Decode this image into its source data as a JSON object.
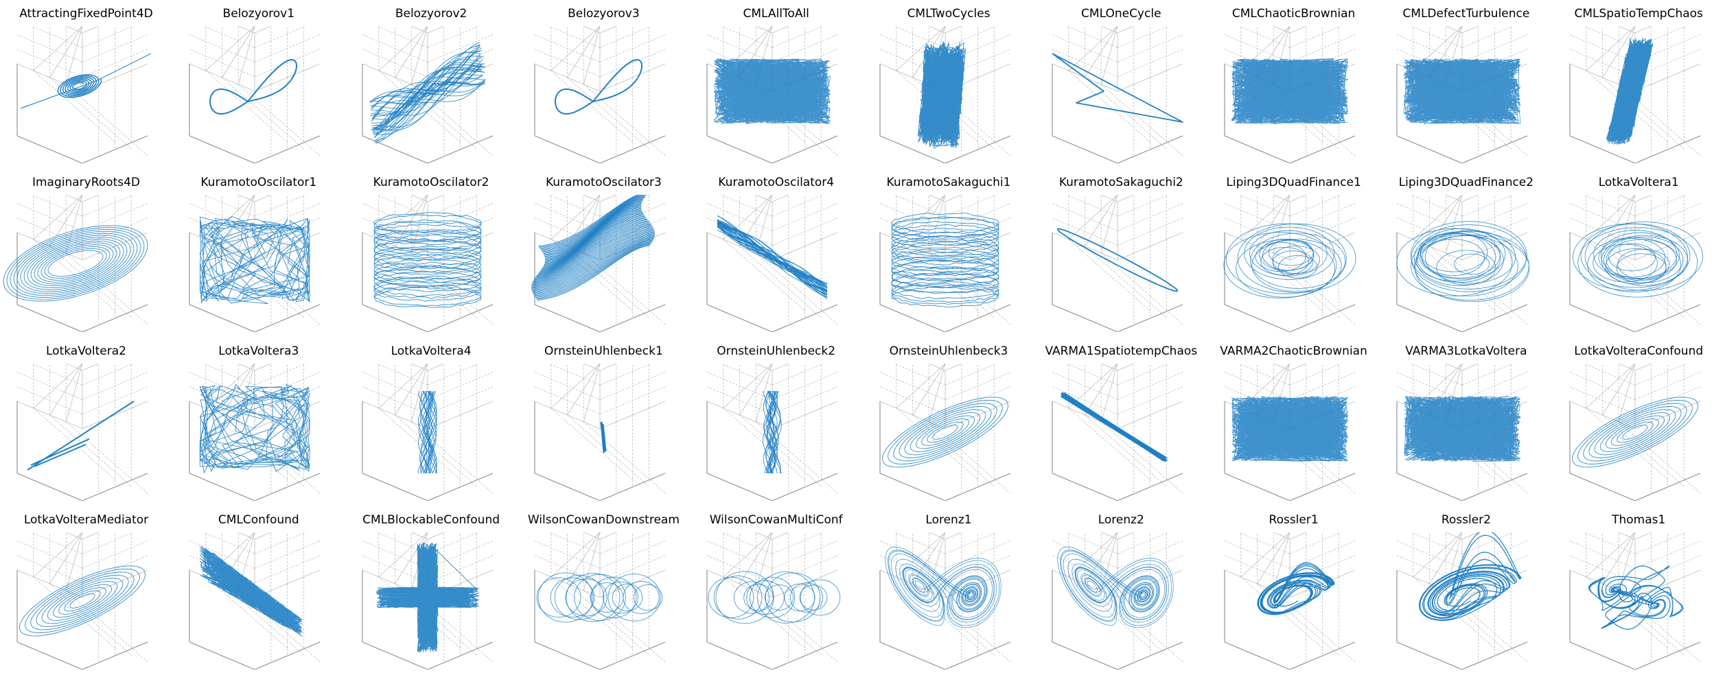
{
  "figure": {
    "accent_color": "#1f7fc4",
    "grid_color": "#bdbdbd",
    "axis_color": "#8a8a8a",
    "chart_type": "3D line plots of system trajectories",
    "layout": "4 rows x 10 columns"
  },
  "chart_data": [
    {
      "type": "line",
      "title": "AttractingFixedPoint4D",
      "shape": "fixedpoint",
      "density": "dense",
      "grid": true
    },
    {
      "type": "line",
      "title": "Belozyorov1",
      "shape": "loop",
      "density": "thin",
      "grid": true
    },
    {
      "type": "line",
      "title": "Belozyorov2",
      "shape": "band",
      "density": "dense",
      "grid": true
    },
    {
      "type": "line",
      "title": "Belozyorov3",
      "shape": "loop",
      "density": "thin",
      "grid": true
    },
    {
      "type": "line",
      "title": "CMLAllToAll",
      "shape": "noise",
      "density": "dense",
      "grid": true
    },
    {
      "type": "line",
      "title": "CMLTwoCycles",
      "shape": "blob",
      "density": "dense",
      "grid": true
    },
    {
      "type": "line",
      "title": "CMLOneCycle",
      "shape": "triangle",
      "density": "thin",
      "grid": true
    },
    {
      "type": "line",
      "title": "CMLChaoticBrownian",
      "shape": "noise",
      "density": "dense",
      "grid": true
    },
    {
      "type": "line",
      "title": "CMLDefectTurbulence",
      "shape": "noise",
      "density": "dense",
      "grid": true
    },
    {
      "type": "line",
      "title": "CMLSpatioTempChaos",
      "shape": "strip",
      "density": "dense",
      "grid": true
    },
    {
      "type": "line",
      "title": "ImaginaryRoots4D",
      "shape": "rings",
      "density": "medium",
      "grid": true
    },
    {
      "type": "line",
      "title": "KuramotoOscilator1",
      "shape": "tangle",
      "density": "medium",
      "grid": true
    },
    {
      "type": "line",
      "title": "KuramotoOscilator2",
      "shape": "cylinder",
      "density": "medium",
      "grid": true
    },
    {
      "type": "line",
      "title": "KuramotoOscilator3",
      "shape": "torus",
      "density": "dense",
      "grid": true
    },
    {
      "type": "line",
      "title": "KuramotoOscilator4",
      "shape": "diagband",
      "density": "medium",
      "grid": true
    },
    {
      "type": "line",
      "title": "KuramotoSakaguchi1",
      "shape": "cylinder",
      "density": "medium",
      "grid": true
    },
    {
      "type": "line",
      "title": "KuramotoSakaguchi2",
      "shape": "ellipse",
      "density": "thin",
      "grid": true
    },
    {
      "type": "line",
      "title": "Liping3DQuadFinance1",
      "shape": "swirl",
      "density": "medium",
      "grid": true
    },
    {
      "type": "line",
      "title": "Liping3DQuadFinance2",
      "shape": "swirl",
      "density": "medium",
      "grid": true
    },
    {
      "type": "line",
      "title": "LotkaVoltera1",
      "shape": "swirl",
      "density": "medium",
      "grid": true
    },
    {
      "type": "line",
      "title": "LotkaVoltera2",
      "shape": "lines",
      "density": "thin",
      "grid": true
    },
    {
      "type": "line",
      "title": "LotkaVoltera3",
      "shape": "tangle",
      "density": "medium",
      "grid": true
    },
    {
      "type": "line",
      "title": "LotkaVoltera4",
      "shape": "vertical",
      "density": "medium",
      "grid": true
    },
    {
      "type": "line",
      "title": "OrnsteinUhlenbeck1",
      "shape": "small",
      "density": "dense",
      "grid": true
    },
    {
      "type": "line",
      "title": "OrnsteinUhlenbeck2",
      "shape": "vertical",
      "density": "medium",
      "grid": true
    },
    {
      "type": "line",
      "title": "OrnsteinUhlenbeck3",
      "shape": "ellipses",
      "density": "medium",
      "grid": true
    },
    {
      "type": "line",
      "title": "VARMA1SpatiotempChaos",
      "shape": "diagline",
      "density": "dense",
      "grid": true
    },
    {
      "type": "line",
      "title": "VARMA2ChaoticBrownian",
      "shape": "noise",
      "density": "dense",
      "grid": true
    },
    {
      "type": "line",
      "title": "VARMA3LotkaVoltera",
      "shape": "noise",
      "density": "dense",
      "grid": true
    },
    {
      "type": "line",
      "title": "LotkaVolteraConfound",
      "shape": "ellipses",
      "density": "dense",
      "grid": true
    },
    {
      "type": "line",
      "title": "LotkaVolteraMediator",
      "shape": "ellipses",
      "density": "dense",
      "grid": true
    },
    {
      "type": "line",
      "title": "CMLConfound",
      "shape": "wedge",
      "density": "dense",
      "grid": true
    },
    {
      "type": "line",
      "title": "CMLBlockableConfound",
      "shape": "cross",
      "density": "dense",
      "grid": true
    },
    {
      "type": "line",
      "title": "WilsonCowanDownstream",
      "shape": "coils",
      "density": "medium",
      "grid": true
    },
    {
      "type": "line",
      "title": "WilsonCowanMultiConf",
      "shape": "coils",
      "density": "medium",
      "grid": true
    },
    {
      "type": "line",
      "title": "Lorenz1",
      "shape": "lorenz",
      "density": "medium",
      "grid": true
    },
    {
      "type": "line",
      "title": "Lorenz2",
      "shape": "lorenz",
      "density": "medium",
      "grid": true
    },
    {
      "type": "line",
      "title": "Rossler1",
      "shape": "rossler",
      "density": "thin",
      "grid": true
    },
    {
      "type": "line",
      "title": "Rossler2",
      "shape": "rossler2",
      "density": "medium",
      "grid": true
    },
    {
      "type": "line",
      "title": "Thomas1",
      "shape": "thomas",
      "density": "medium",
      "grid": true
    }
  ]
}
